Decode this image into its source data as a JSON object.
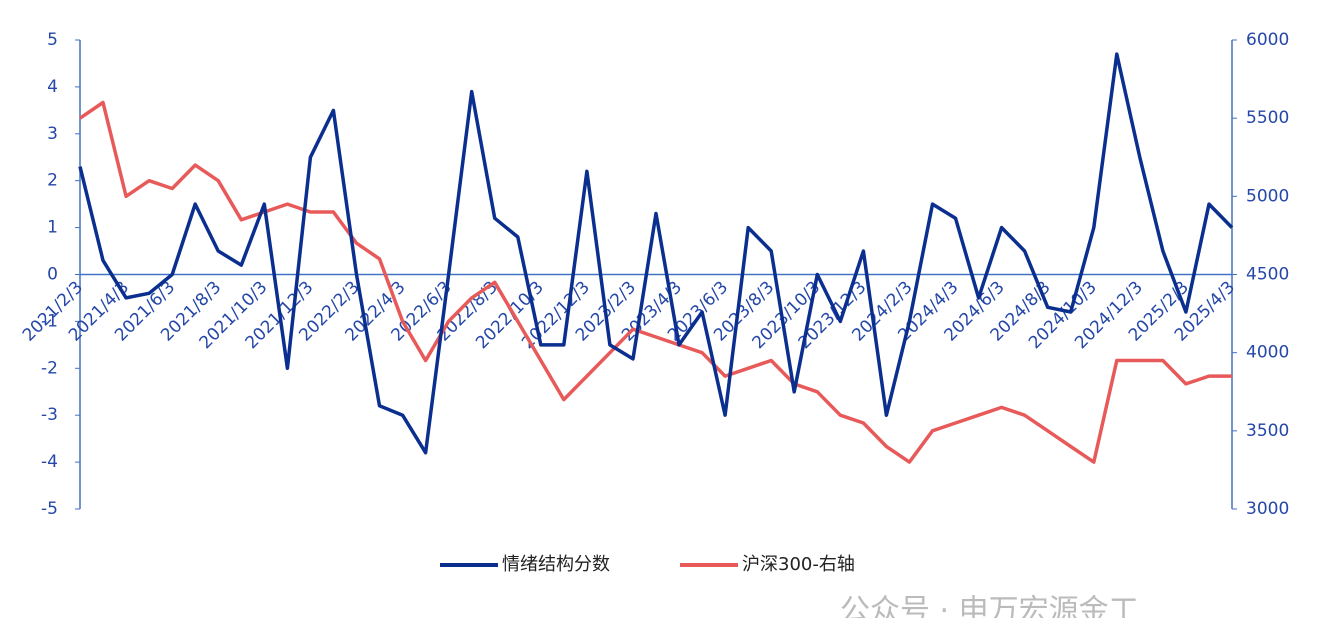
{
  "chart_data": {
    "type": "line",
    "categories": [
      "2021/2/3",
      null,
      "2021/4/3",
      null,
      "2021/6/3",
      null,
      "2021/8/3",
      null,
      "2021/10/3",
      null,
      "2021/12/3",
      null,
      "2022/2/3",
      null,
      "2022/4/3",
      null,
      "2022/6/3",
      null,
      "2022/8/3",
      null,
      "2022/10/3",
      null,
      "2022/12/3",
      null,
      "2023/2/3",
      null,
      "2023/4/3",
      null,
      "2023/6/3",
      null,
      "2023/8/3",
      null,
      "2023/10/3",
      null,
      "2023/12/3",
      null,
      "2024/2/3",
      null,
      "2024/4/3",
      null,
      "2024/6/3",
      null,
      "2024/8/3",
      null,
      "2024/10/3",
      null,
      "2024/12/3",
      null,
      "2025/2/3",
      null,
      "2025/4/3"
    ],
    "series": [
      {
        "name": "情绪结构分数",
        "color": "#0b2f8f",
        "values": [
          2.3,
          0.3,
          -0.5,
          -0.4,
          0,
          1.5,
          0.5,
          0.2,
          1.5,
          -2.0,
          2.5,
          3.5,
          0,
          -2.8,
          -3.0,
          -3.8,
          0,
          3.9,
          1.2,
          0.8,
          -1.5,
          -1.5,
          2.2,
          -1.5,
          -1.8,
          1.3,
          -1.5,
          -0.8,
          -3.0,
          1.0,
          0.5,
          -2.5,
          0,
          -1.0,
          0.5,
          -3.0,
          -1.0,
          1.5,
          1.2,
          -0.5,
          1.0,
          0.5,
          -0.7,
          -0.8,
          1.0,
          4.7,
          2.5,
          0.5,
          -0.8,
          1.5,
          1.0
        ]
      },
      {
        "name": "沪深300-右轴",
        "color": "#e85a5a",
        "axis": "y2",
        "values": [
          5500,
          5600,
          5000,
          5100,
          5050,
          5200,
          5100,
          4850,
          4900,
          4950,
          4900,
          4900,
          4700,
          4600,
          4200,
          3950,
          4200,
          4350,
          4450,
          4200,
          3950,
          3700,
          3850,
          4000,
          4150,
          4100,
          4050,
          4000,
          3850,
          3900,
          3950,
          3800,
          3750,
          3600,
          3550,
          3400,
          3300,
          3500,
          3550,
          3600,
          3650,
          3600,
          3500,
          3400,
          3300,
          3950,
          3950,
          3950,
          3800,
          3850,
          3850
        ]
      }
    ],
    "ylim": [
      -5,
      5
    ],
    "yticks": [
      -5,
      -4,
      -3,
      -2,
      -1,
      0,
      1,
      2,
      3,
      4,
      5
    ],
    "y2lim": [
      3000,
      6000
    ],
    "y2ticks": [
      3000,
      3500,
      4000,
      4500,
      5000,
      5500,
      6000
    ],
    "watermark": "公众号 · 申万宏源金工"
  }
}
